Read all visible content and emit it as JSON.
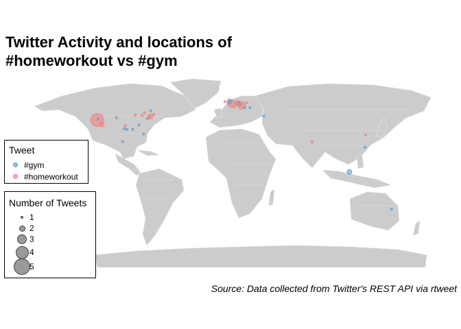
{
  "title_lines": [
    "Twitter Activity and locations of",
    "#homeworkout vs #gym"
  ],
  "caption": "Source: Data collected from Twitter's REST API via rtweet",
  "colors": {
    "land": "#cccccc",
    "border": "#e6e6e6",
    "gym": "#6b9ec9",
    "homeworkout": "#f08080"
  },
  "legend_tweet": {
    "title": "Tweet",
    "items": [
      {
        "label": "#gym",
        "key": "gym"
      },
      {
        "label": "#homeworkout",
        "key": "homeworkout"
      }
    ]
  },
  "legend_size": {
    "title": "Number of Tweets",
    "items": [
      {
        "label": "1",
        "count": 1
      },
      {
        "label": "2",
        "count": 2
      },
      {
        "label": "3",
        "count": 3
      },
      {
        "label": "4",
        "count": 4
      },
      {
        "label": "5",
        "count": 5
      }
    ]
  },
  "points": [
    {
      "lon": -122.4,
      "lat": 37.8,
      "tag": "homeworkout",
      "count": 5
    },
    {
      "lon": -118.2,
      "lat": 34.0,
      "tag": "homeworkout",
      "count": 2
    },
    {
      "lon": -121.5,
      "lat": 38.6,
      "tag": "gym",
      "count": 1
    },
    {
      "lon": -97.7,
      "lat": 30.3,
      "tag": "gym",
      "count": 1
    },
    {
      "lon": -96.8,
      "lat": 32.8,
      "tag": "homeworkout",
      "count": 1
    },
    {
      "lon": -95.4,
      "lat": 29.8,
      "tag": "gym",
      "count": 1
    },
    {
      "lon": -104.9,
      "lat": 39.7,
      "tag": "gym",
      "count": 1
    },
    {
      "lon": -87.6,
      "lat": 41.9,
      "tag": "homeworkout",
      "count": 1
    },
    {
      "lon": -84.4,
      "lat": 33.7,
      "tag": "gym",
      "count": 1
    },
    {
      "lon": -81.6,
      "lat": 41.5,
      "tag": "homeworkout",
      "count": 1
    },
    {
      "lon": -80.2,
      "lat": 25.8,
      "tag": "gym",
      "count": 1
    },
    {
      "lon": -77.0,
      "lat": 38.9,
      "tag": "homeworkout",
      "count": 1
    },
    {
      "lon": -75.2,
      "lat": 40.0,
      "tag": "gym",
      "count": 1
    },
    {
      "lon": -74.0,
      "lat": 40.7,
      "tag": "homeworkout",
      "count": 2
    },
    {
      "lon": -71.1,
      "lat": 42.4,
      "tag": "homeworkout",
      "count": 1
    },
    {
      "lon": -79.4,
      "lat": 43.7,
      "tag": "homeworkout",
      "count": 1
    },
    {
      "lon": -73.6,
      "lat": 45.5,
      "tag": "gym",
      "count": 1
    },
    {
      "lon": -90.1,
      "lat": 29.9,
      "tag": "gym",
      "count": 1
    },
    {
      "lon": -99.1,
      "lat": 19.4,
      "tag": "gym",
      "count": 1
    },
    {
      "lon": -0.1,
      "lat": 51.5,
      "tag": "homeworkout",
      "count": 3
    },
    {
      "lon": -6.3,
      "lat": 53.3,
      "tag": "homeworkout",
      "count": 1
    },
    {
      "lon": -2.2,
      "lat": 53.5,
      "tag": "gym",
      "count": 2
    },
    {
      "lon": 2.4,
      "lat": 48.9,
      "tag": "homeworkout",
      "count": 1
    },
    {
      "lon": 4.9,
      "lat": 52.4,
      "tag": "homeworkout",
      "count": 2
    },
    {
      "lon": 6.8,
      "lat": 51.2,
      "tag": "gym",
      "count": 2
    },
    {
      "lon": 8.7,
      "lat": 50.1,
      "tag": "homeworkout",
      "count": 3
    },
    {
      "lon": 11.6,
      "lat": 48.1,
      "tag": "gym",
      "count": 1
    },
    {
      "lon": 13.4,
      "lat": 52.5,
      "tag": "homeworkout",
      "count": 1
    },
    {
      "lon": 16.4,
      "lat": 48.2,
      "tag": "gym",
      "count": 1
    },
    {
      "lon": 28.9,
      "lat": 41.0,
      "tag": "gym",
      "count": 1
    },
    {
      "lon": 72.9,
      "lat": 19.1,
      "tag": "homeworkout",
      "count": 1
    },
    {
      "lon": 106.8,
      "lat": -6.2,
      "tag": "gym",
      "count": 2
    },
    {
      "lon": 121.0,
      "lat": 14.6,
      "tag": "gym",
      "count": 1
    },
    {
      "lon": 121.5,
      "lat": 25.0,
      "tag": "homeworkout",
      "count": 1
    },
    {
      "lon": 145.0,
      "lat": -37.8,
      "tag": "gym",
      "count": 1
    }
  ]
}
